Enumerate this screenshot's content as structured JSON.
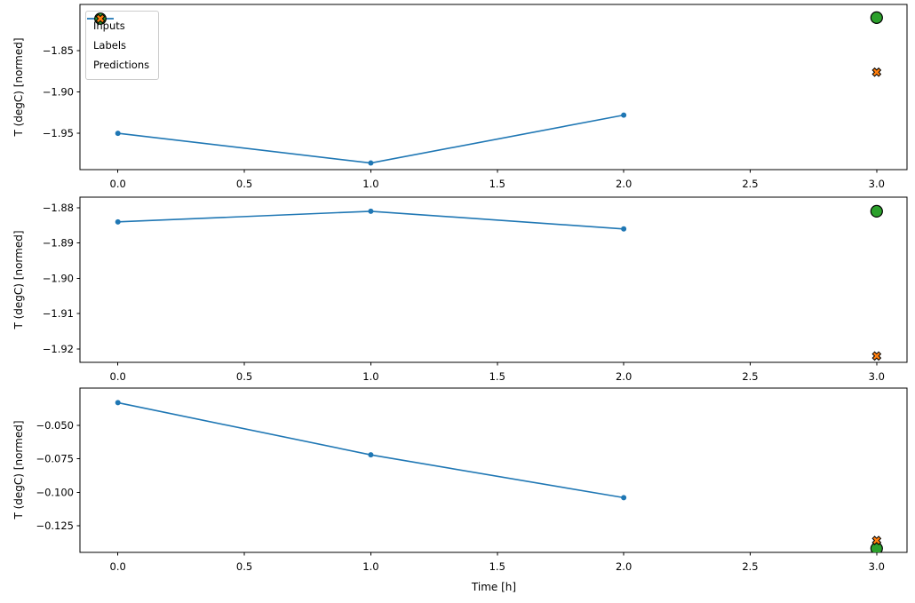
{
  "window": {
    "background": "#ffffff"
  },
  "palette": {
    "inputs_color": "#1f77b4",
    "labels_color": "#2ca02c",
    "predictions_color": "#ff7f0e",
    "marker_edge_color": "#000000",
    "axis_color": "#000000",
    "legend_border_color": "#cccccc"
  },
  "axes": {
    "xlabel": "Time [h]",
    "ylabel": "T (degC) [normed]"
  },
  "legend": {
    "position": "upper-left-of-first-subplot",
    "items": [
      {
        "label": "Inputs",
        "marker": "line-with-dot",
        "color": "#1f77b4"
      },
      {
        "label": "Labels",
        "marker": "circle",
        "color": "#2ca02c"
      },
      {
        "label": "Predictions",
        "marker": "x",
        "color": "#ff7f0e"
      }
    ]
  },
  "chart_data": [
    {
      "type": "line",
      "subplot": 1,
      "ylabel": "T (degC) [normed]",
      "xlim": [
        -0.15,
        3.12
      ],
      "ylim": [
        -1.994,
        -1.794
      ],
      "xticks": {
        "values": [
          0,
          0.5,
          1,
          1.5,
          2,
          2.5,
          3
        ],
        "labels": [
          "0.0",
          "0.5",
          "1.0",
          "1.5",
          "2.0",
          "2.5",
          "3.0"
        ],
        "show_labels": true
      },
      "yticks": {
        "values": [
          -1.85,
          -1.9,
          -1.95
        ],
        "labels": [
          "−1.85",
          "−1.90",
          "−1.95"
        ]
      },
      "series": [
        {
          "name": "Inputs",
          "kind": "line",
          "x": [
            0,
            1,
            2
          ],
          "y": [
            -1.95,
            -1.986,
            -1.928
          ]
        },
        {
          "name": "Labels",
          "kind": "scatter-circle",
          "x": [
            3
          ],
          "y": [
            -1.81
          ]
        },
        {
          "name": "Predictions",
          "kind": "scatter-x",
          "x": [
            3
          ],
          "y": [
            -1.876
          ]
        }
      ]
    },
    {
      "type": "line",
      "subplot": 2,
      "ylabel": "T (degC) [normed]",
      "xlim": [
        -0.15,
        3.12
      ],
      "ylim": [
        -1.9238,
        -1.877
      ],
      "xticks": {
        "values": [
          0,
          0.5,
          1,
          1.5,
          2,
          2.5,
          3
        ],
        "labels": [
          "0.0",
          "0.5",
          "1.0",
          "1.5",
          "2.0",
          "2.5",
          "3.0"
        ],
        "show_labels": true
      },
      "yticks": {
        "values": [
          -1.88,
          -1.89,
          -1.9,
          -1.91,
          -1.92
        ],
        "labels": [
          "−1.88",
          "−1.89",
          "−1.90",
          "−1.91",
          "−1.92"
        ]
      },
      "series": [
        {
          "name": "Inputs",
          "kind": "line",
          "x": [
            0,
            1,
            2
          ],
          "y": [
            -1.884,
            -1.881,
            -1.886
          ]
        },
        {
          "name": "Labels",
          "kind": "scatter-circle",
          "x": [
            3
          ],
          "y": [
            -1.881
          ]
        },
        {
          "name": "Predictions",
          "kind": "scatter-x",
          "x": [
            3
          ],
          "y": [
            -1.922
          ]
        }
      ]
    },
    {
      "type": "line",
      "subplot": 3,
      "ylabel": "T (degC) [normed]",
      "xlabel": "Time [h]",
      "xlim": [
        -0.15,
        3.12
      ],
      "ylim": [
        -0.1449,
        -0.0221
      ],
      "xticks": {
        "values": [
          0,
          0.5,
          1,
          1.5,
          2,
          2.5,
          3
        ],
        "labels": [
          "0.0",
          "0.5",
          "1.0",
          "1.5",
          "2.0",
          "2.5",
          "3.0"
        ],
        "show_labels": true
      },
      "yticks": {
        "values": [
          -0.05,
          -0.075,
          -0.1,
          -0.125
        ],
        "labels": [
          "−0.050",
          "−0.075",
          "−0.100",
          "−0.125"
        ]
      },
      "series": [
        {
          "name": "Inputs",
          "kind": "line",
          "x": [
            0,
            1,
            2
          ],
          "y": [
            -0.033,
            -0.072,
            -0.104
          ]
        },
        {
          "name": "Labels",
          "kind": "scatter-circle",
          "x": [
            3
          ],
          "y": [
            -0.142
          ]
        },
        {
          "name": "Predictions",
          "kind": "scatter-x",
          "x": [
            3
          ],
          "y": [
            -0.136
          ]
        }
      ]
    }
  ]
}
